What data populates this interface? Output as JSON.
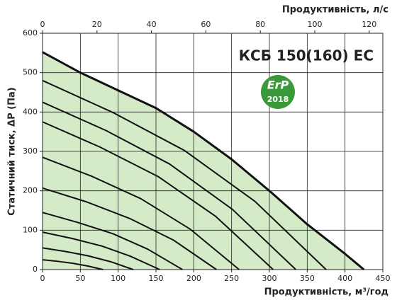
{
  "chart_data": {
    "type": "line",
    "title": "КСБ 150(160) ЕС",
    "badge": {
      "text": "ErP",
      "year": "2018",
      "color": "#3a9a3a"
    },
    "x_label": "Продуктивність, м³/год",
    "x2_label": "Продуктивність, л/с",
    "y_label": "Статичний тиск, ΔР (Па)",
    "xlim": [
      0,
      450
    ],
    "xticks": [
      0,
      50,
      100,
      150,
      200,
      250,
      300,
      350,
      400,
      450
    ],
    "x2lim": [
      0,
      125
    ],
    "x2ticks": [
      0,
      20,
      40,
      60,
      80,
      100,
      120
    ],
    "ylim": [
      0,
      600
    ],
    "yticks": [
      0,
      100,
      200,
      300,
      400,
      500,
      600
    ],
    "grid": true,
    "series": [
      {
        "color": "#111111",
        "fill": "#d5ebc7",
        "x": [
          0,
          50,
          100,
          150,
          200,
          250,
          300,
          350,
          400,
          425
        ],
        "values": [
          552,
          500,
          455,
          410,
          350,
          280,
          200,
          115,
          40,
          0
        ]
      },
      {
        "color": "#111111",
        "x": [
          0,
          94,
          188,
          281,
          375
        ],
        "values": [
          480,
          398,
          302,
          173,
          0
        ]
      },
      {
        "color": "#111111",
        "x": [
          0,
          84,
          168,
          251,
          335
        ],
        "values": [
          425,
          353,
          268,
          153,
          0
        ]
      },
      {
        "color": "#111111",
        "x": [
          0,
          76,
          153,
          229,
          305
        ],
        "values": [
          375,
          311,
          236,
          135,
          0
        ]
      },
      {
        "color": "#111111",
        "x": [
          0,
          65,
          130,
          195,
          260
        ],
        "values": [
          285,
          237,
          180,
          103,
          0
        ]
      },
      {
        "color": "#111111",
        "x": [
          0,
          58,
          115,
          173,
          230
        ],
        "values": [
          207,
          172,
          130,
          75,
          0
        ]
      },
      {
        "color": "#111111",
        "x": [
          0,
          46,
          93,
          139,
          185
        ],
        "values": [
          145,
          120,
          91,
          52,
          0
        ]
      },
      {
        "color": "#111111",
        "x": [
          0,
          39,
          78,
          116,
          155
        ],
        "values": [
          95,
          79,
          60,
          34,
          0
        ]
      },
      {
        "color": "#111111",
        "x": [
          0,
          30,
          60,
          90,
          120
        ],
        "values": [
          55,
          46,
          35,
          20,
          0
        ]
      },
      {
        "color": "#111111",
        "x": [
          0,
          20,
          40,
          60,
          80
        ],
        "values": [
          25,
          21,
          16,
          9,
          0
        ]
      }
    ]
  }
}
